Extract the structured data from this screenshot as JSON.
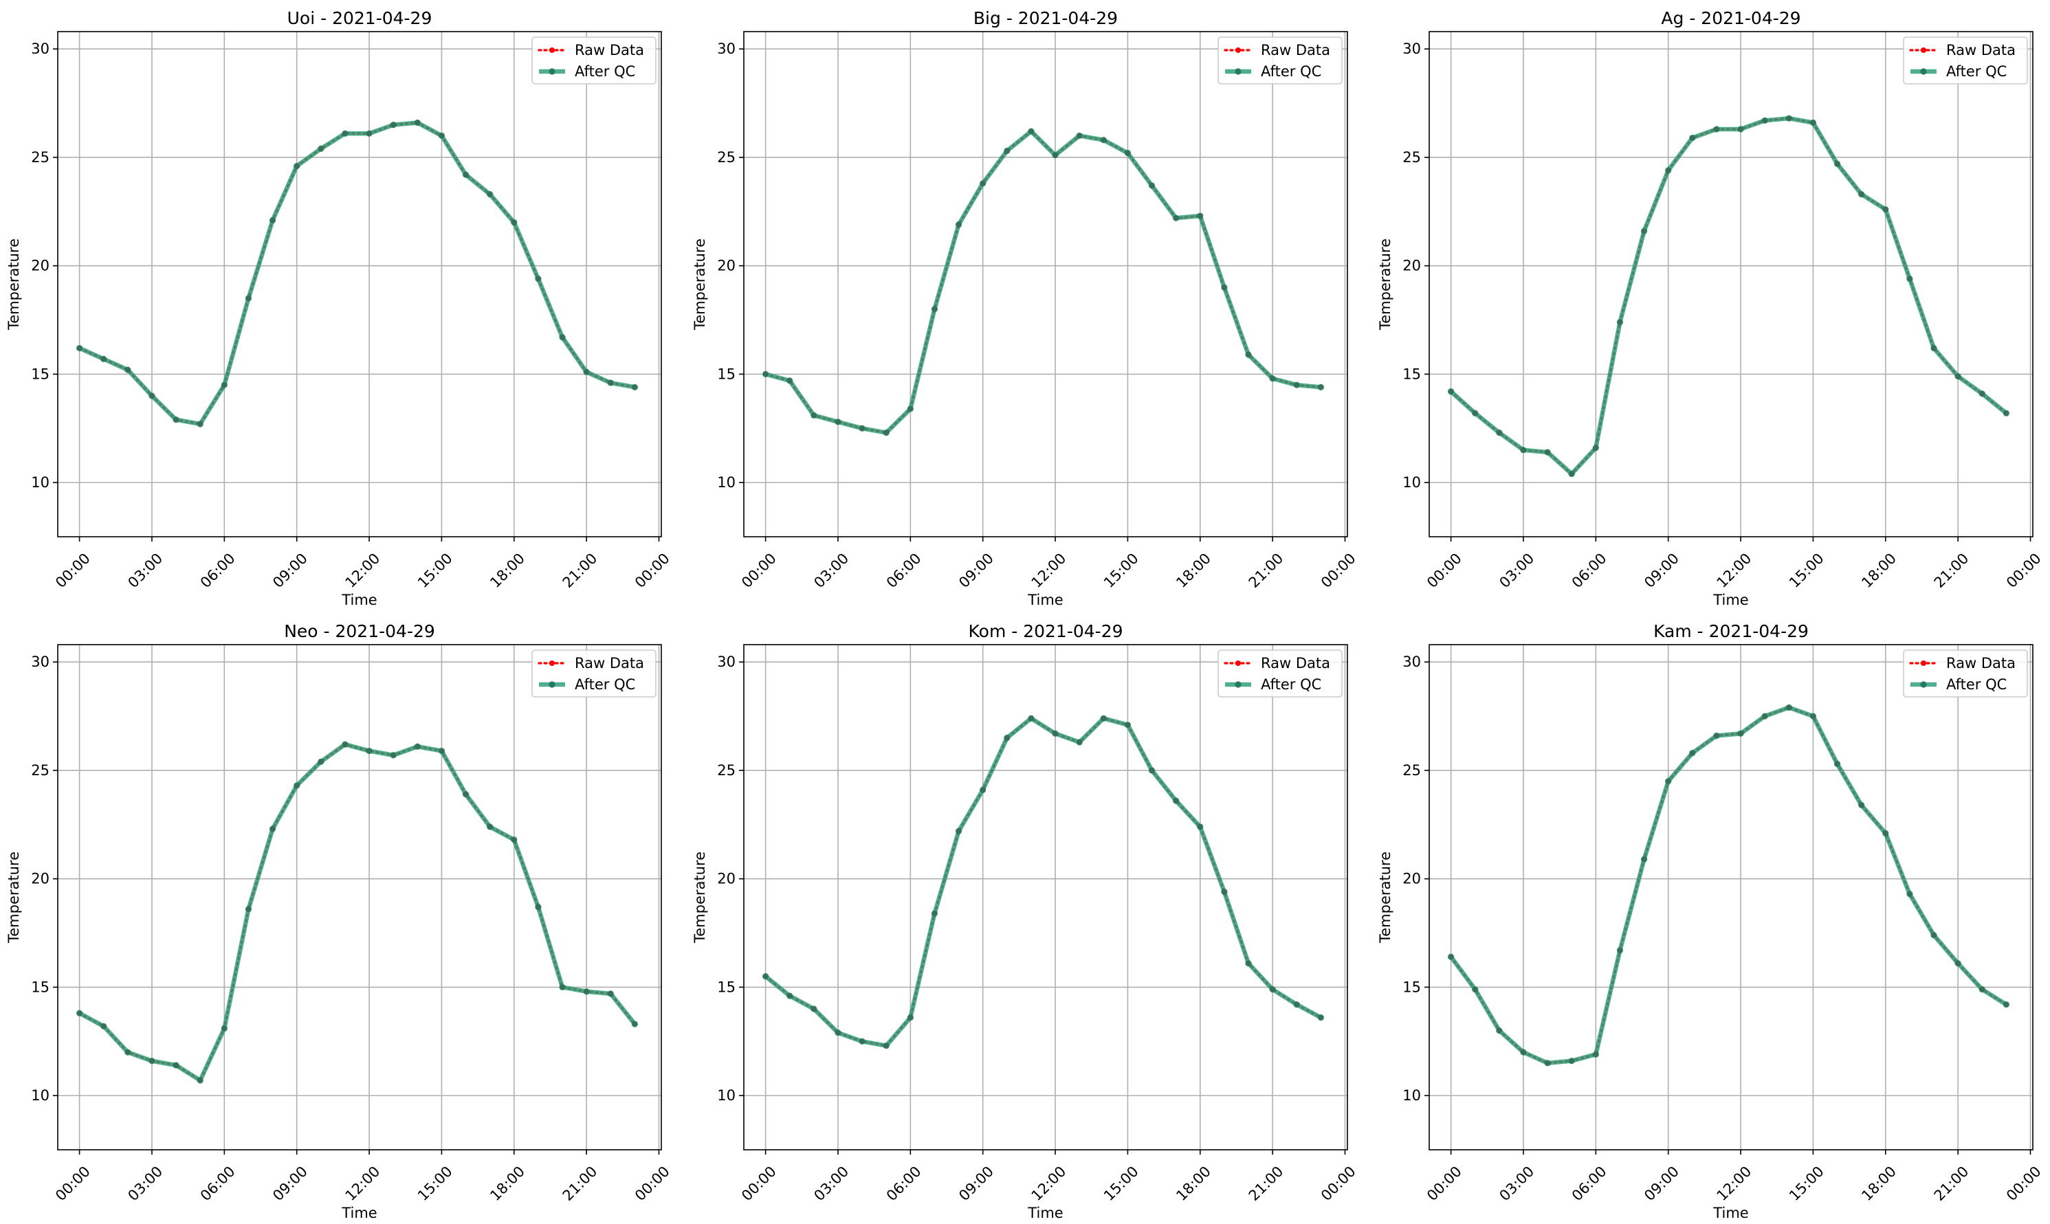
{
  "figure": {
    "background": "#ffffff"
  },
  "chart_data": [
    {
      "type": "line",
      "title": "Uoi - 2021-04-29",
      "xlabel": "Time",
      "ylabel": "Temperature",
      "xlim": [
        -0.9,
        24.1
      ],
      "ylim": [
        7.5,
        30.8
      ],
      "x_ticks": [
        0,
        3,
        6,
        9,
        12,
        15,
        18,
        21,
        24
      ],
      "x_tick_labels": [
        "00:00",
        "03:00",
        "06:00",
        "09:00",
        "12:00",
        "15:00",
        "18:00",
        "21:00",
        "00:00"
      ],
      "y_ticks": [
        10,
        15,
        20,
        25,
        30
      ],
      "y_tick_labels": [
        "10",
        "15",
        "20",
        "25",
        "30"
      ],
      "grid": true,
      "legend": "top-right",
      "x": [
        0,
        1,
        2,
        3,
        4,
        5,
        6,
        7,
        8,
        9,
        10,
        11,
        12,
        13,
        14,
        15,
        16,
        17,
        18,
        19,
        20,
        21,
        22,
        23
      ],
      "series": [
        {
          "name": "Raw Data",
          "color": "#ff0000",
          "style": "dotted",
          "values": [
            16.2,
            15.7,
            15.2,
            14.0,
            12.9,
            12.7,
            14.5,
            18.5,
            22.1,
            24.6,
            25.4,
            26.1,
            26.1,
            26.5,
            26.6,
            26.0,
            24.2,
            23.3,
            22.0,
            19.4,
            16.7,
            15.1,
            14.6,
            14.4
          ]
        },
        {
          "name": "After QC",
          "color": "#2a9d78",
          "style": "solid",
          "values": [
            16.2,
            15.7,
            15.2,
            14.0,
            12.9,
            12.7,
            14.5,
            18.5,
            22.1,
            24.6,
            25.4,
            26.1,
            26.1,
            26.5,
            26.6,
            26.0,
            24.2,
            23.3,
            22.0,
            19.4,
            16.7,
            15.1,
            14.6,
            14.4
          ]
        }
      ]
    },
    {
      "type": "line",
      "title": "Big - 2021-04-29",
      "xlabel": "Time",
      "ylabel": "Temperature",
      "xlim": [
        -0.9,
        24.1
      ],
      "ylim": [
        7.5,
        30.8
      ],
      "x_ticks": [
        0,
        3,
        6,
        9,
        12,
        15,
        18,
        21,
        24
      ],
      "x_tick_labels": [
        "00:00",
        "03:00",
        "06:00",
        "09:00",
        "12:00",
        "15:00",
        "18:00",
        "21:00",
        "00:00"
      ],
      "y_ticks": [
        10,
        15,
        20,
        25,
        30
      ],
      "y_tick_labels": [
        "10",
        "15",
        "20",
        "25",
        "30"
      ],
      "grid": true,
      "legend": "top-right",
      "x": [
        0,
        1,
        2,
        3,
        4,
        5,
        6,
        7,
        8,
        9,
        10,
        11,
        12,
        13,
        14,
        15,
        16,
        17,
        18,
        19,
        20,
        21,
        22,
        23
      ],
      "series": [
        {
          "name": "Raw Data",
          "color": "#ff0000",
          "style": "dotted",
          "values": [
            15.0,
            14.7,
            13.1,
            12.8,
            12.5,
            12.3,
            13.4,
            18.0,
            21.9,
            23.8,
            25.3,
            26.2,
            25.1,
            26.0,
            25.8,
            25.2,
            23.7,
            22.2,
            22.3,
            19.0,
            15.9,
            14.8,
            14.5,
            14.4
          ]
        },
        {
          "name": "After QC",
          "color": "#2a9d78",
          "style": "solid",
          "values": [
            15.0,
            14.7,
            13.1,
            12.8,
            12.5,
            12.3,
            13.4,
            18.0,
            21.9,
            23.8,
            25.3,
            26.2,
            25.1,
            26.0,
            25.8,
            25.2,
            23.7,
            22.2,
            22.3,
            19.0,
            15.9,
            14.8,
            14.5,
            14.4
          ]
        }
      ]
    },
    {
      "type": "line",
      "title": "Ag - 2021-04-29",
      "xlabel": "Time",
      "ylabel": "Temperature",
      "xlim": [
        -0.9,
        24.1
      ],
      "ylim": [
        7.5,
        30.8
      ],
      "x_ticks": [
        0,
        3,
        6,
        9,
        12,
        15,
        18,
        21,
        24
      ],
      "x_tick_labels": [
        "00:00",
        "03:00",
        "06:00",
        "09:00",
        "12:00",
        "15:00",
        "18:00",
        "21:00",
        "00:00"
      ],
      "y_ticks": [
        10,
        15,
        20,
        25,
        30
      ],
      "y_tick_labels": [
        "10",
        "15",
        "20",
        "25",
        "30"
      ],
      "grid": true,
      "legend": "top-right",
      "x": [
        0,
        1,
        2,
        3,
        4,
        5,
        6,
        7,
        8,
        9,
        10,
        11,
        12,
        13,
        14,
        15,
        16,
        17,
        18,
        19,
        20,
        21,
        22,
        23
      ],
      "series": [
        {
          "name": "Raw Data",
          "color": "#ff0000",
          "style": "dotted",
          "values": [
            14.2,
            13.2,
            12.3,
            11.5,
            11.4,
            10.4,
            11.6,
            17.4,
            21.6,
            24.4,
            25.9,
            26.3,
            26.3,
            26.7,
            26.8,
            26.6,
            24.7,
            23.3,
            22.6,
            19.4,
            16.2,
            14.9,
            14.1,
            13.2
          ]
        },
        {
          "name": "After QC",
          "color": "#2a9d78",
          "style": "solid",
          "values": [
            14.2,
            13.2,
            12.3,
            11.5,
            11.4,
            10.4,
            11.6,
            17.4,
            21.6,
            24.4,
            25.9,
            26.3,
            26.3,
            26.7,
            26.8,
            26.6,
            24.7,
            23.3,
            22.6,
            19.4,
            16.2,
            14.9,
            14.1,
            13.2
          ]
        }
      ]
    },
    {
      "type": "line",
      "title": "Neo - 2021-04-29",
      "xlabel": "Time",
      "ylabel": "Temperature",
      "xlim": [
        -0.9,
        24.1
      ],
      "ylim": [
        7.5,
        30.8
      ],
      "x_ticks": [
        0,
        3,
        6,
        9,
        12,
        15,
        18,
        21,
        24
      ],
      "x_tick_labels": [
        "00:00",
        "03:00",
        "06:00",
        "09:00",
        "12:00",
        "15:00",
        "18:00",
        "21:00",
        "00:00"
      ],
      "y_ticks": [
        10,
        15,
        20,
        25,
        30
      ],
      "y_tick_labels": [
        "10",
        "15",
        "20",
        "25",
        "30"
      ],
      "grid": true,
      "legend": "top-right",
      "x": [
        0,
        1,
        2,
        3,
        4,
        5,
        6,
        7,
        8,
        9,
        10,
        11,
        12,
        13,
        14,
        15,
        16,
        17,
        18,
        19,
        20,
        21,
        22,
        23
      ],
      "series": [
        {
          "name": "Raw Data",
          "color": "#ff0000",
          "style": "dotted",
          "values": [
            13.8,
            13.2,
            12.0,
            11.6,
            11.4,
            10.7,
            13.1,
            18.6,
            22.3,
            24.3,
            25.4,
            26.2,
            25.9,
            25.7,
            26.1,
            25.9,
            23.9,
            22.4,
            21.8,
            18.7,
            15.0,
            14.8,
            14.7,
            13.3
          ]
        },
        {
          "name": "After QC",
          "color": "#2a9d78",
          "style": "solid",
          "values": [
            13.8,
            13.2,
            12.0,
            11.6,
            11.4,
            10.7,
            13.1,
            18.6,
            22.3,
            24.3,
            25.4,
            26.2,
            25.9,
            25.7,
            26.1,
            25.9,
            23.9,
            22.4,
            21.8,
            18.7,
            15.0,
            14.8,
            14.7,
            13.3
          ]
        }
      ]
    },
    {
      "type": "line",
      "title": "Kom - 2021-04-29",
      "xlabel": "Time",
      "ylabel": "Temperature",
      "xlim": [
        -0.9,
        24.1
      ],
      "ylim": [
        7.5,
        30.8
      ],
      "x_ticks": [
        0,
        3,
        6,
        9,
        12,
        15,
        18,
        21,
        24
      ],
      "x_tick_labels": [
        "00:00",
        "03:00",
        "06:00",
        "09:00",
        "12:00",
        "15:00",
        "18:00",
        "21:00",
        "00:00"
      ],
      "y_ticks": [
        10,
        15,
        20,
        25,
        30
      ],
      "y_tick_labels": [
        "10",
        "15",
        "20",
        "25",
        "30"
      ],
      "grid": true,
      "legend": "top-right",
      "x": [
        0,
        1,
        2,
        3,
        4,
        5,
        6,
        7,
        8,
        9,
        10,
        11,
        12,
        13,
        14,
        15,
        16,
        17,
        18,
        19,
        20,
        21,
        22,
        23
      ],
      "series": [
        {
          "name": "Raw Data",
          "color": "#ff0000",
          "style": "dotted",
          "values": [
            15.5,
            14.6,
            14.0,
            12.9,
            12.5,
            12.3,
            13.6,
            18.4,
            22.2,
            24.1,
            26.5,
            27.4,
            26.7,
            26.3,
            27.4,
            27.1,
            25.0,
            23.6,
            22.4,
            19.4,
            16.1,
            14.9,
            14.2,
            13.6
          ]
        },
        {
          "name": "After QC",
          "color": "#2a9d78",
          "style": "solid",
          "values": [
            15.5,
            14.6,
            14.0,
            12.9,
            12.5,
            12.3,
            13.6,
            18.4,
            22.2,
            24.1,
            26.5,
            27.4,
            26.7,
            26.3,
            27.4,
            27.1,
            25.0,
            23.6,
            22.4,
            19.4,
            16.1,
            14.9,
            14.2,
            13.6
          ]
        }
      ]
    },
    {
      "type": "line",
      "title": "Kam - 2021-04-29",
      "xlabel": "Time",
      "ylabel": "Temperature",
      "xlim": [
        -0.9,
        24.1
      ],
      "ylim": [
        7.5,
        30.8
      ],
      "x_ticks": [
        0,
        3,
        6,
        9,
        12,
        15,
        18,
        21,
        24
      ],
      "x_tick_labels": [
        "00:00",
        "03:00",
        "06:00",
        "09:00",
        "12:00",
        "15:00",
        "18:00",
        "21:00",
        "00:00"
      ],
      "y_ticks": [
        10,
        15,
        20,
        25,
        30
      ],
      "y_tick_labels": [
        "10",
        "15",
        "20",
        "25",
        "30"
      ],
      "grid": true,
      "legend": "top-right",
      "x": [
        0,
        1,
        2,
        3,
        4,
        5,
        6,
        7,
        8,
        9,
        10,
        11,
        12,
        13,
        14,
        15,
        16,
        17,
        18,
        19,
        20,
        21,
        22,
        23
      ],
      "series": [
        {
          "name": "Raw Data",
          "color": "#ff0000",
          "style": "dotted",
          "values": [
            16.4,
            14.9,
            13.0,
            12.0,
            11.5,
            11.6,
            11.9,
            16.7,
            20.9,
            24.5,
            25.8,
            26.6,
            26.7,
            27.5,
            27.9,
            27.5,
            25.3,
            23.4,
            22.1,
            19.3,
            17.4,
            16.1,
            14.9,
            14.2
          ]
        },
        {
          "name": "After QC",
          "color": "#2a9d78",
          "style": "solid",
          "values": [
            16.4,
            14.9,
            13.0,
            12.0,
            11.5,
            11.6,
            11.9,
            16.7,
            20.9,
            24.5,
            25.8,
            26.6,
            26.7,
            27.5,
            27.9,
            27.5,
            25.3,
            23.4,
            22.1,
            19.3,
            17.4,
            16.1,
            14.9,
            14.2
          ]
        }
      ]
    }
  ]
}
